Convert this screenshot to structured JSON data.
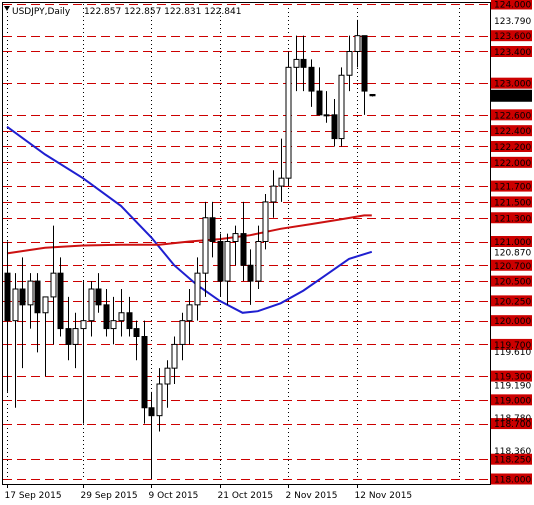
{
  "header": {
    "symbol_timeframe": "USDJPY,Daily",
    "ohlc": "122.857 122.857 122.831 122.841"
  },
  "colors": {
    "background": "#ffffff",
    "level_line": "#cc0000",
    "level_label_bg": "#cc0000",
    "level_label_text": "#ffffff",
    "candle": "#000000",
    "ma_fast": "#1f1fd0",
    "ma_slow": "#cc1111",
    "grid": "#000000",
    "current_price_bg": "#000000",
    "current_price_text": "#ffffff"
  },
  "chart_data": {
    "type": "candlestick",
    "symbol": "USDJPY",
    "timeframe": "Daily",
    "ylim": [
      118.0,
      124.0
    ],
    "current_price": 122.841,
    "x_tick_labels": [
      "17 Sep 2015",
      "29 Sep 2015",
      "9 Oct 2015",
      "21 Oct 2015",
      "2 Nov 2015",
      "12 Nov 2015"
    ],
    "x_tick_index": [
      0,
      10,
      19,
      28,
      37,
      46
    ],
    "plain_price_labels": [
      123.79,
      120.87,
      119.61,
      119.19,
      118.78,
      118.36
    ],
    "horizontal_levels": [
      124.0,
      123.6,
      123.4,
      123.0,
      122.6,
      122.4,
      122.2,
      122.0,
      121.7,
      121.5,
      121.3,
      121.0,
      120.7,
      120.5,
      120.25,
      120.0,
      119.7,
      119.3,
      119.0,
      118.7,
      118.25,
      118.0
    ],
    "candles": [
      {
        "o": 120.6,
        "h": 121.0,
        "l": 119.1,
        "c": 120.0
      },
      {
        "o": 120.0,
        "h": 120.6,
        "l": 118.9,
        "c": 120.4
      },
      {
        "o": 120.4,
        "h": 120.8,
        "l": 119.4,
        "c": 120.2
      },
      {
        "o": 120.2,
        "h": 120.6,
        "l": 119.9,
        "c": 120.5
      },
      {
        "o": 120.5,
        "h": 120.6,
        "l": 119.6,
        "c": 120.1
      },
      {
        "o": 120.1,
        "h": 120.3,
        "l": 119.3,
        "c": 120.3
      },
      {
        "o": 120.3,
        "h": 121.2,
        "l": 119.7,
        "c": 120.6
      },
      {
        "o": 120.6,
        "h": 120.8,
        "l": 119.8,
        "c": 119.9
      },
      {
        "o": 119.9,
        "h": 120.3,
        "l": 119.5,
        "c": 119.7
      },
      {
        "o": 119.7,
        "h": 120.1,
        "l": 119.4,
        "c": 119.9
      },
      {
        "o": 119.9,
        "h": 120.5,
        "l": 118.7,
        "c": 120.0
      },
      {
        "o": 120.0,
        "h": 120.5,
        "l": 119.8,
        "c": 120.4
      },
      {
        "o": 120.4,
        "h": 120.6,
        "l": 120.1,
        "c": 120.2
      },
      {
        "o": 120.2,
        "h": 120.4,
        "l": 119.8,
        "c": 119.9
      },
      {
        "o": 119.9,
        "h": 120.3,
        "l": 119.7,
        "c": 120.0
      },
      {
        "o": 120.0,
        "h": 120.4,
        "l": 119.8,
        "c": 120.1
      },
      {
        "o": 120.1,
        "h": 120.3,
        "l": 119.8,
        "c": 119.9
      },
      {
        "o": 119.9,
        "h": 120.0,
        "l": 119.5,
        "c": 119.8
      },
      {
        "o": 119.8,
        "h": 120.0,
        "l": 118.7,
        "c": 118.9
      },
      {
        "o": 118.9,
        "h": 119.1,
        "l": 118.0,
        "c": 118.8
      },
      {
        "o": 118.8,
        "h": 119.4,
        "l": 118.6,
        "c": 119.2
      },
      {
        "o": 119.2,
        "h": 119.5,
        "l": 118.9,
        "c": 119.4
      },
      {
        "o": 119.4,
        "h": 119.8,
        "l": 119.2,
        "c": 119.7
      },
      {
        "o": 119.7,
        "h": 120.1,
        "l": 119.5,
        "c": 120.0
      },
      {
        "o": 120.0,
        "h": 120.4,
        "l": 119.7,
        "c": 120.2
      },
      {
        "o": 120.2,
        "h": 120.8,
        "l": 120.0,
        "c": 120.6
      },
      {
        "o": 120.6,
        "h": 121.5,
        "l": 120.3,
        "c": 121.3
      },
      {
        "o": 121.3,
        "h": 121.5,
        "l": 120.8,
        "c": 121.0
      },
      {
        "o": 121.0,
        "h": 121.1,
        "l": 120.3,
        "c": 120.5
      },
      {
        "o": 120.5,
        "h": 121.1,
        "l": 120.2,
        "c": 121.0
      },
      {
        "o": 121.0,
        "h": 121.2,
        "l": 120.7,
        "c": 121.1
      },
      {
        "o": 121.1,
        "h": 121.5,
        "l": 120.5,
        "c": 120.7
      },
      {
        "o": 120.7,
        "h": 120.9,
        "l": 120.2,
        "c": 120.5
      },
      {
        "o": 120.5,
        "h": 121.2,
        "l": 120.4,
        "c": 121.0
      },
      {
        "o": 121.0,
        "h": 121.6,
        "l": 120.9,
        "c": 121.5
      },
      {
        "o": 121.5,
        "h": 121.9,
        "l": 121.3,
        "c": 121.7
      },
      {
        "o": 121.7,
        "h": 122.3,
        "l": 121.5,
        "c": 121.8
      },
      {
        "o": 121.8,
        "h": 123.4,
        "l": 121.7,
        "c": 123.2
      },
      {
        "o": 123.2,
        "h": 123.6,
        "l": 122.9,
        "c": 123.3
      },
      {
        "o": 123.3,
        "h": 123.6,
        "l": 122.9,
        "c": 123.2
      },
      {
        "o": 123.2,
        "h": 123.3,
        "l": 122.7,
        "c": 122.9
      },
      {
        "o": 122.9,
        "h": 123.2,
        "l": 122.6,
        "c": 122.6
      },
      {
        "o": 122.6,
        "h": 122.9,
        "l": 122.5,
        "c": 122.6
      },
      {
        "o": 122.6,
        "h": 122.8,
        "l": 122.2,
        "c": 122.3
      },
      {
        "o": 122.3,
        "h": 123.2,
        "l": 122.2,
        "c": 123.1
      },
      {
        "o": 123.1,
        "h": 123.6,
        "l": 122.9,
        "c": 123.4
      },
      {
        "o": 123.4,
        "h": 123.8,
        "l": 123.2,
        "c": 123.6
      },
      {
        "o": 123.6,
        "h": 123.6,
        "l": 122.6,
        "c": 122.9
      },
      {
        "o": 122.857,
        "h": 122.857,
        "l": 122.831,
        "c": 122.841
      }
    ],
    "ma_fast": [
      [
        0,
        122.45
      ],
      [
        5,
        122.1
      ],
      [
        10,
        121.8
      ],
      [
        15,
        121.45
      ],
      [
        19,
        121.05
      ],
      [
        22,
        120.7
      ],
      [
        25,
        120.45
      ],
      [
        28,
        120.25
      ],
      [
        31,
        120.1
      ],
      [
        33,
        120.12
      ],
      [
        36,
        120.22
      ],
      [
        39,
        120.38
      ],
      [
        42,
        120.58
      ],
      [
        45,
        120.78
      ],
      [
        48,
        120.87
      ]
    ],
    "ma_slow": [
      [
        0,
        120.85
      ],
      [
        5,
        120.92
      ],
      [
        10,
        120.95
      ],
      [
        15,
        120.96
      ],
      [
        20,
        120.96
      ],
      [
        24,
        121.0
      ],
      [
        28,
        121.03
      ],
      [
        32,
        121.08
      ],
      [
        36,
        121.16
      ],
      [
        40,
        121.22
      ],
      [
        44,
        121.28
      ],
      [
        47,
        121.33
      ],
      [
        48,
        121.33
      ]
    ]
  }
}
